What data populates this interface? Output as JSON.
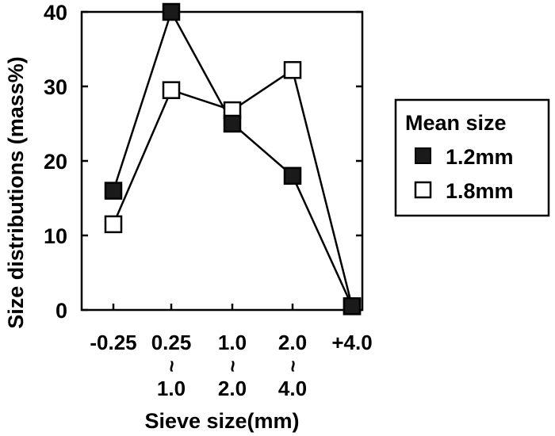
{
  "chart_data": {
    "type": "line",
    "xlabel": "Sieve size(mm)",
    "ylabel": "Size distributions (mass%)",
    "ylim": [
      0,
      40
    ],
    "yticks": [
      "0",
      "10",
      "20",
      "30",
      "40"
    ],
    "categories": [
      {
        "top": "-0.25",
        "sep": "",
        "bottom": ""
      },
      {
        "top": "0.25",
        "sep": "~",
        "bottom": "1.0"
      },
      {
        "top": "1.0",
        "sep": "~",
        "bottom": "2.0"
      },
      {
        "top": "2.0",
        "sep": "~",
        "bottom": "4.0"
      },
      {
        "top": "+4.0",
        "sep": "",
        "bottom": ""
      }
    ],
    "legend": {
      "title": "Mean size",
      "placement": "right"
    },
    "series": [
      {
        "name": "1.2mm",
        "marker": "filled-square",
        "color": "#1a1a1a",
        "values": [
          16,
          40,
          25,
          18,
          0.5
        ]
      },
      {
        "name": "1.8mm",
        "marker": "open-square",
        "color": "#ffffff",
        "values": [
          11.5,
          29.5,
          26.8,
          32.2,
          0.5
        ]
      }
    ]
  }
}
